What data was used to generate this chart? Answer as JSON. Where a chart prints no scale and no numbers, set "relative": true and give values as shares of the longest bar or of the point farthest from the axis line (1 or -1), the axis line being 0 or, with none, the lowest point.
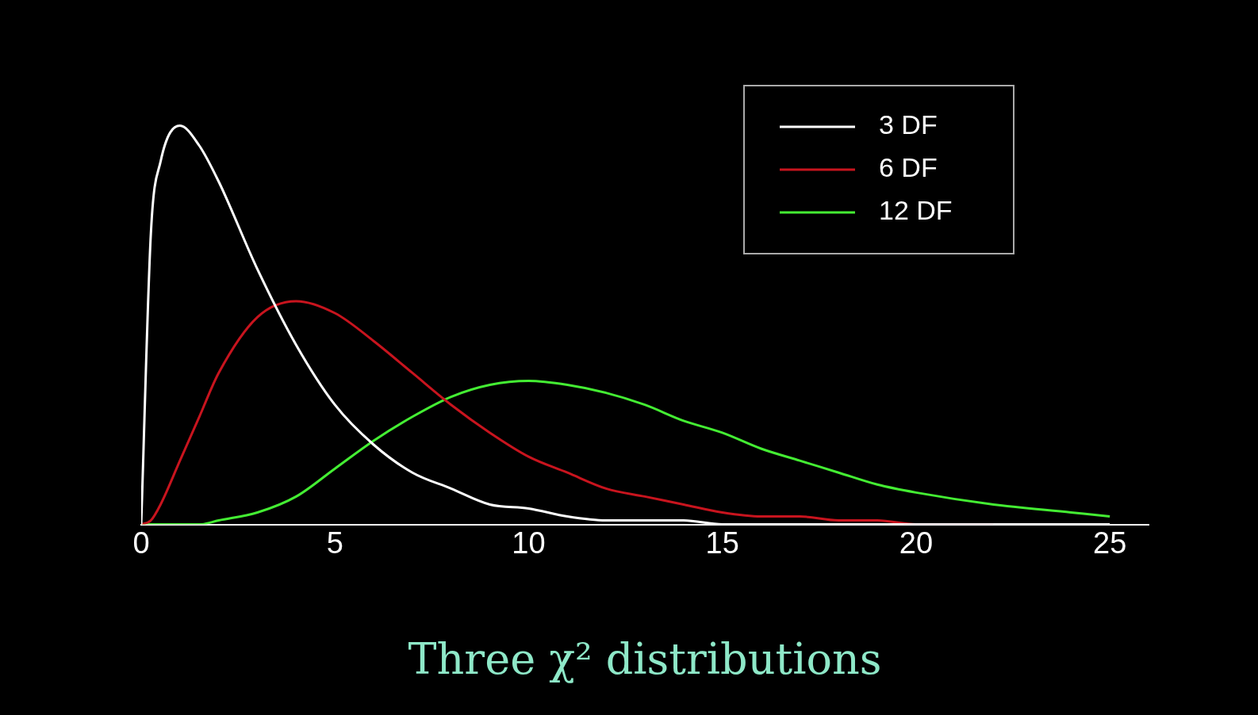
{
  "chart_data": {
    "type": "line",
    "title": "Three χ² distributions",
    "relative": true,
    "x": [
      0,
      0.25,
      0.5,
      1,
      1.5,
      2,
      3,
      4,
      5,
      6,
      7,
      8,
      9,
      10,
      11,
      12,
      13,
      14,
      15,
      16,
      17,
      18,
      19,
      20,
      22,
      24,
      25
    ],
    "series": [
      {
        "name": "3 DF",
        "color": "#ffffff",
        "values": [
          0,
          0.73,
          0.91,
          1,
          0.95,
          0.86,
          0.64,
          0.45,
          0.3,
          0.2,
          0.13,
          0.09,
          0.05,
          0.04,
          0.02,
          0.01,
          0.01,
          0.01,
          0,
          0,
          0,
          0,
          0,
          0,
          0,
          0,
          0
        ]
      },
      {
        "name": "6 DF",
        "color": "#c8141e",
        "values": [
          0,
          0.01,
          0.05,
          0.16,
          0.27,
          0.38,
          0.52,
          0.56,
          0.53,
          0.46,
          0.38,
          0.3,
          0.23,
          0.17,
          0.13,
          0.09,
          0.07,
          0.05,
          0.03,
          0.02,
          0.02,
          0.01,
          0.01,
          0,
          0,
          null,
          null
        ]
      },
      {
        "name": "12 DF",
        "color": "#44ee33",
        "values": [
          0,
          0,
          0,
          0,
          0,
          0.01,
          0.03,
          0.07,
          0.14,
          0.21,
          0.27,
          0.32,
          0.35,
          0.36,
          0.35,
          0.33,
          0.3,
          0.26,
          0.23,
          0.19,
          0.16,
          0.13,
          0.1,
          0.08,
          0.05,
          0.03,
          0.02
        ]
      }
    ],
    "xlim": [
      0,
      26
    ],
    "xticks": [
      0,
      5,
      10,
      15,
      20,
      25
    ],
    "grid": false,
    "legend": "top right"
  }
}
